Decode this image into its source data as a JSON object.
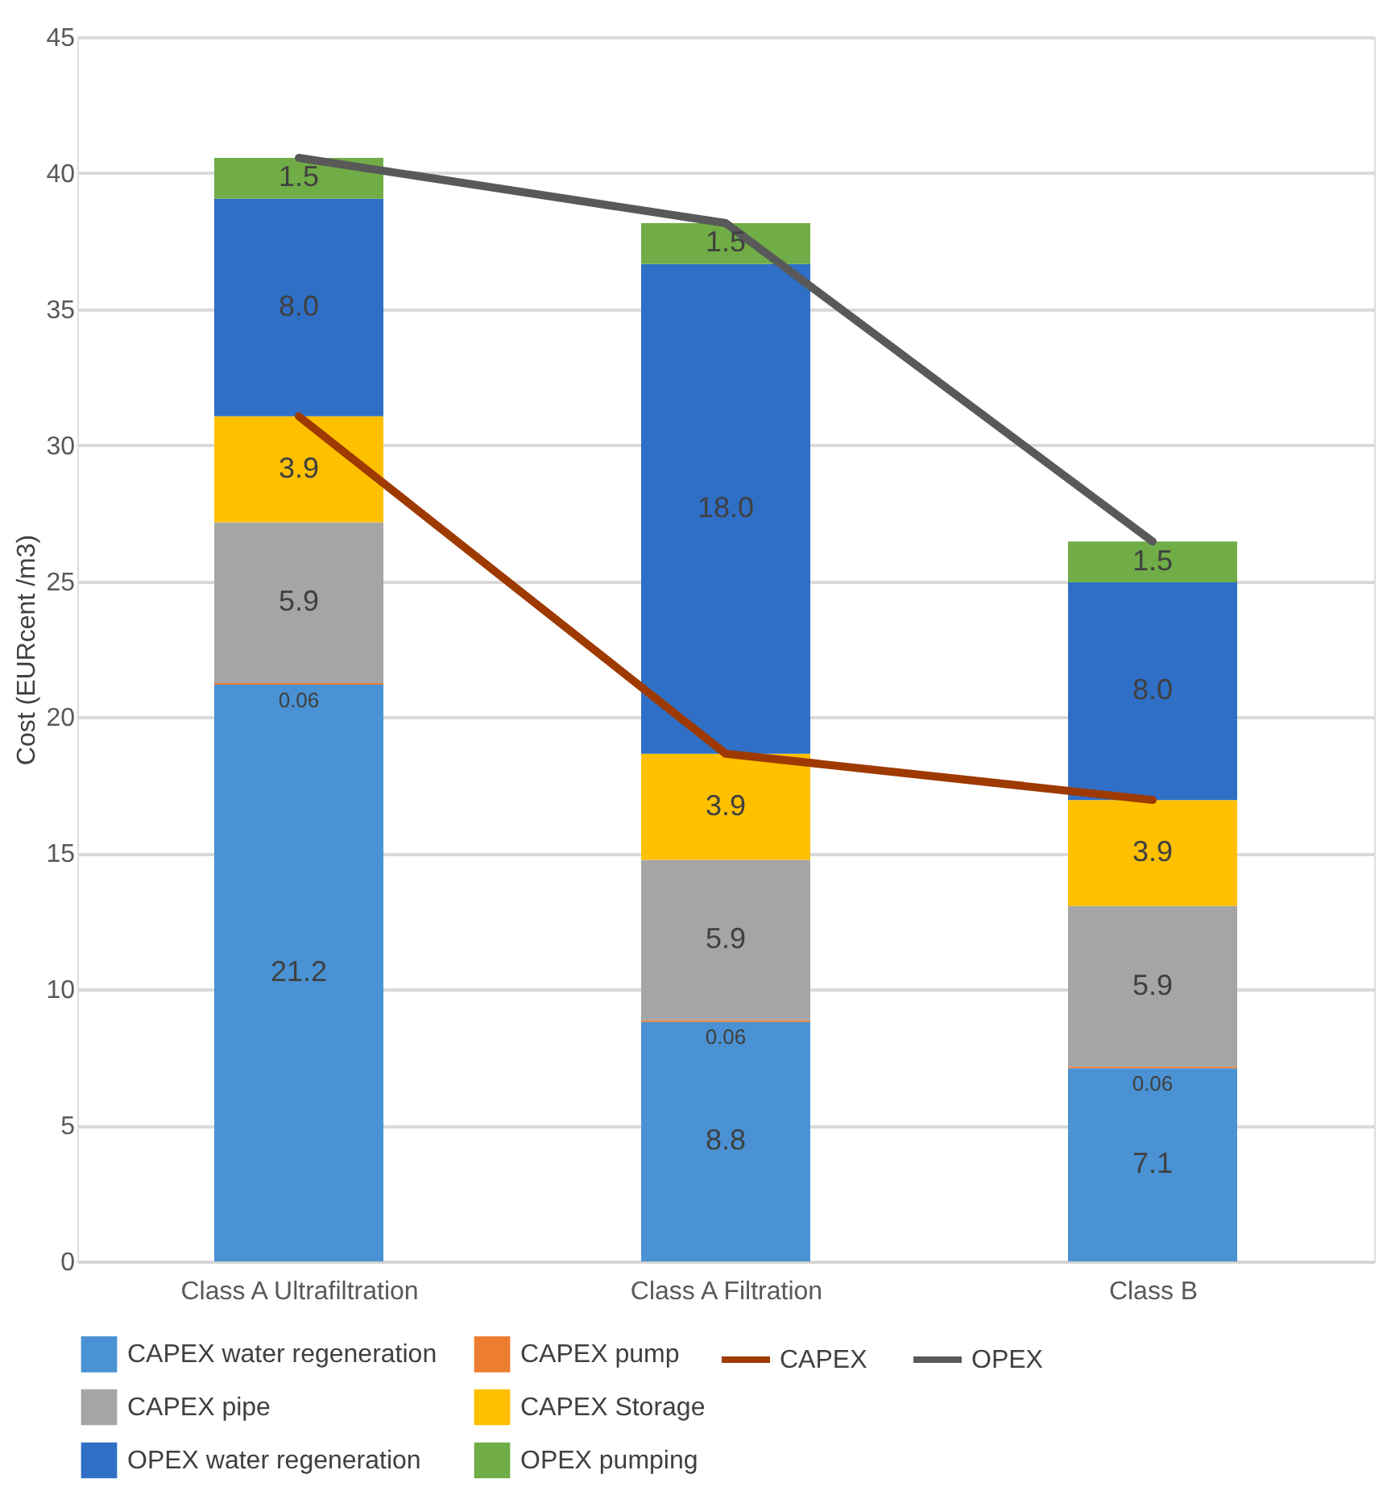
{
  "chart_data": {
    "type": "bar",
    "stacked": true,
    "ylabel": "Cost (EURcent /m3)",
    "categories": [
      "Class A Ultrafiltration",
      "Class A Filtration",
      "Class B"
    ],
    "ylim": [
      0,
      45
    ],
    "yticks": [
      0,
      5,
      10,
      15,
      20,
      25,
      30,
      35,
      40,
      45
    ],
    "grid": "y",
    "legend": "bottom",
    "series": [
      {
        "name": "CAPEX water regeneration",
        "color": "#4a92d3",
        "values": [
          21.2,
          8.8,
          7.1
        ],
        "value_labels": [
          "21.2",
          "8.8",
          "7.1"
        ]
      },
      {
        "name": "CAPEX pump",
        "color": "#ed7d31",
        "values": [
          0.06,
          0.06,
          0.06
        ],
        "value_labels": [
          "0.06",
          "0.06",
          "0.06"
        ]
      },
      {
        "name": "CAPEX pipe",
        "color": "#a5a5a5",
        "values": [
          5.9,
          5.9,
          5.9
        ],
        "value_labels": [
          "5.9",
          "5.9",
          "5.9"
        ]
      },
      {
        "name": "CAPEX Storage",
        "color": "#ffc000",
        "values": [
          3.9,
          3.9,
          3.9
        ],
        "value_labels": [
          "3.9",
          "3.9",
          "3.9"
        ]
      },
      {
        "name": "OPEX water regeneration",
        "color": "#2f6fc6",
        "values": [
          8.0,
          18.0,
          8.0
        ],
        "value_labels": [
          "8.0",
          "18.0",
          "8.0"
        ]
      },
      {
        "name": "OPEX pumping",
        "color": "#70ad47",
        "values": [
          1.5,
          1.5,
          1.5
        ],
        "value_labels": [
          "1.5",
          "1.5",
          "1.5"
        ]
      },
      {
        "name": "CAPEX",
        "type": "line",
        "color": "#9e3a00",
        "values": [
          31.06,
          18.66,
          16.96
        ]
      },
      {
        "name": "OPEX",
        "type": "line",
        "color": "#595959",
        "values": [
          40.56,
          38.16,
          26.46
        ]
      }
    ]
  }
}
